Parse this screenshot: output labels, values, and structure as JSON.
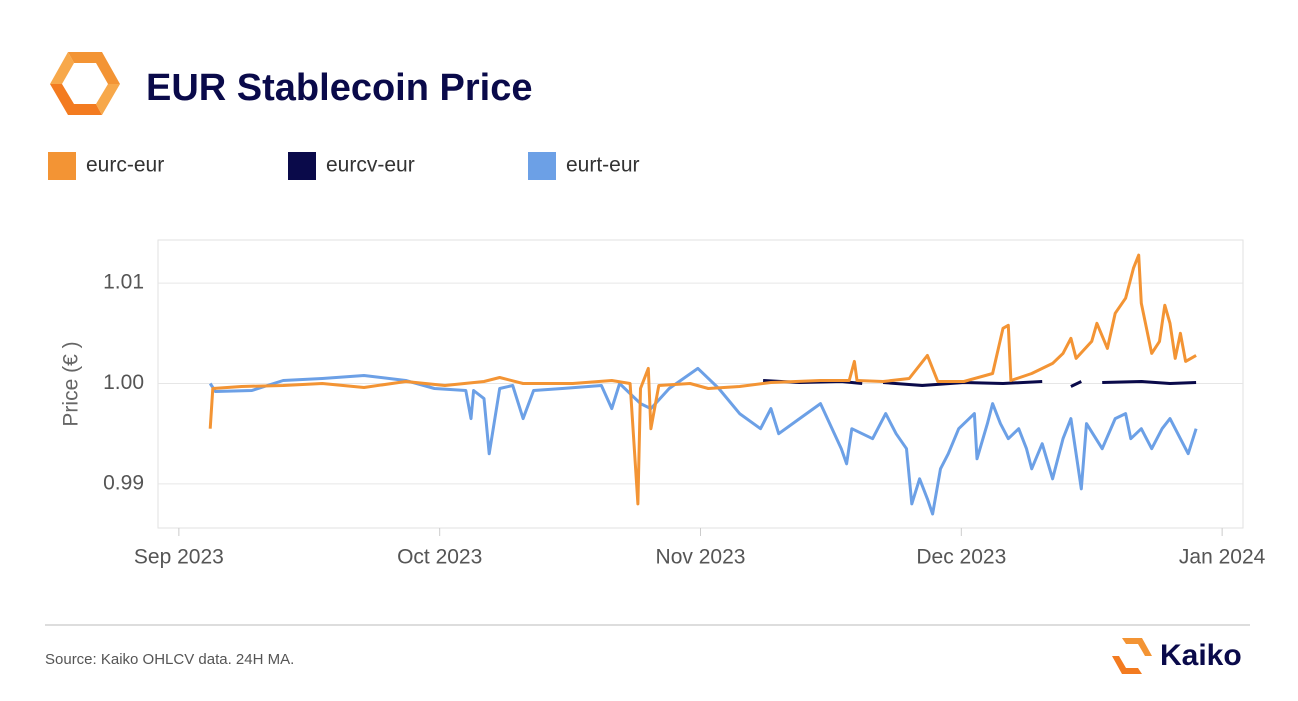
{
  "chart_data": {
    "type": "line",
    "title": "EUR Stablecoin Price",
    "ylabel": "Price (€ )",
    "source": "Source: Kaiko OHLCV data. 24H MA.",
    "brand": "Kaiko",
    "xlim": [
      8.92,
      13.08
    ],
    "xticks": [
      {
        "value": 9,
        "label": "Sep 2023"
      },
      {
        "value": 10,
        "label": "Oct 2023"
      },
      {
        "value": 11,
        "label": "Nov 2023"
      },
      {
        "value": 12,
        "label": "Dec 2023"
      },
      {
        "value": 13,
        "label": "Jan 2024"
      }
    ],
    "ylim": [
      0.9856,
      1.0143
    ],
    "yticks": [
      0.99,
      {
        "value": 1,
        "label": "1.00"
      },
      1.01
    ],
    "grid": true,
    "legend": "top",
    "series": [
      {
        "name": "eurc-eur",
        "color": "#f39434",
        "x": [
          9.12,
          9.13,
          9.24,
          9.4,
          9.55,
          9.71,
          9.87,
          10.02,
          10.17,
          10.23,
          10.32,
          10.51,
          10.66,
          10.73,
          10.76,
          10.77,
          10.8,
          10.81,
          10.84,
          10.96,
          11.03,
          11.15,
          11.27,
          11.46,
          11.57,
          11.59,
          11.6,
          11.7,
          11.8,
          11.87,
          11.91,
          12.01,
          12.12,
          12.16,
          12.18,
          12.19,
          12.27,
          12.35,
          12.39,
          12.42,
          12.44,
          12.5,
          12.52,
          12.56,
          12.59,
          12.63,
          12.66,
          12.68,
          12.69,
          12.73,
          12.76,
          12.78,
          12.8,
          12.82,
          12.84,
          12.86,
          12.9
        ],
        "values": [
          0.9955,
          0.9995,
          0.9997,
          0.9998,
          1.0,
          0.9996,
          1.0002,
          0.9998,
          1.0002,
          1.0006,
          1.0,
          1.0,
          1.0003,
          1.0,
          0.988,
          0.9995,
          1.0015,
          0.9955,
          0.9998,
          1.0,
          0.9995,
          0.9997,
          1.0001,
          1.0003,
          1.0003,
          1.0022,
          1.0003,
          1.0002,
          1.0005,
          1.0028,
          1.0002,
          1.0002,
          1.001,
          1.0055,
          1.0058,
          1.0003,
          1.001,
          1.002,
          1.003,
          1.0045,
          1.0025,
          1.0042,
          1.006,
          1.0035,
          1.007,
          1.0085,
          1.0115,
          1.0128,
          1.008,
          1.003,
          1.0042,
          1.0078,
          1.006,
          1.0025,
          1.005,
          1.0022,
          1.0028
        ]
      },
      {
        "name": "eurcv-eur",
        "color": "#0a0a4a",
        "x": [
          11.24,
          11.38,
          11.54,
          11.62,
          11.66,
          11.7,
          11.85,
          12.01,
          12.16,
          12.31,
          12.35,
          12.42,
          12.46,
          12.49,
          12.54,
          12.69,
          12.8,
          12.9
        ],
        "values": [
          1.0003,
          1.0001,
          1.0002,
          1.0,
          null,
          1.0001,
          0.9998,
          1.0001,
          1.0,
          1.0002,
          null,
          0.9997,
          1.0002,
          null,
          1.0001,
          1.0002,
          1.0,
          1.0001
        ]
      },
      {
        "name": "eurt-eur",
        "color": "#6ca0e6",
        "x": [
          9.12,
          9.14,
          9.28,
          9.4,
          9.55,
          9.71,
          9.87,
          9.98,
          10.1,
          10.12,
          10.13,
          10.17,
          10.19,
          10.23,
          10.28,
          10.32,
          10.36,
          10.47,
          10.62,
          10.66,
          10.69,
          10.77,
          10.81,
          10.88,
          10.99,
          11.07,
          11.15,
          11.23,
          11.27,
          11.3,
          11.38,
          11.46,
          11.54,
          11.56,
          11.58,
          11.66,
          11.71,
          11.75,
          11.79,
          11.81,
          11.84,
          11.87,
          11.89,
          11.92,
          11.95,
          11.99,
          12.05,
          12.06,
          12.1,
          12.12,
          12.15,
          12.18,
          12.22,
          12.25,
          12.27,
          12.31,
          12.35,
          12.39,
          12.42,
          12.46,
          12.48,
          12.54,
          12.59,
          12.63,
          12.65,
          12.69,
          12.73,
          12.77,
          12.8,
          12.84,
          12.87,
          12.9
        ],
        "values": [
          1.0,
          0.9992,
          0.9993,
          1.0003,
          1.0005,
          1.0008,
          1.0003,
          0.9995,
          0.9993,
          0.9965,
          0.9993,
          0.9985,
          0.993,
          0.9995,
          0.9998,
          0.9965,
          0.9993,
          0.9995,
          0.9998,
          0.9975,
          1.0,
          0.998,
          0.9975,
          0.9995,
          1.0015,
          0.9995,
          0.997,
          0.9955,
          0.9975,
          0.995,
          0.9965,
          0.998,
          0.9935,
          0.992,
          0.9955,
          0.9945,
          0.997,
          0.995,
          0.9935,
          0.988,
          0.9905,
          0.9885,
          0.987,
          0.9915,
          0.993,
          0.9955,
          0.997,
          0.9925,
          0.996,
          0.998,
          0.996,
          0.9945,
          0.9955,
          0.9935,
          0.9915,
          0.994,
          0.9905,
          0.9945,
          0.9965,
          0.9895,
          0.996,
          0.9935,
          0.9965,
          0.997,
          0.9945,
          0.9955,
          0.9935,
          0.9955,
          0.9965,
          0.9945,
          0.993,
          0.9955
        ]
      }
    ]
  }
}
